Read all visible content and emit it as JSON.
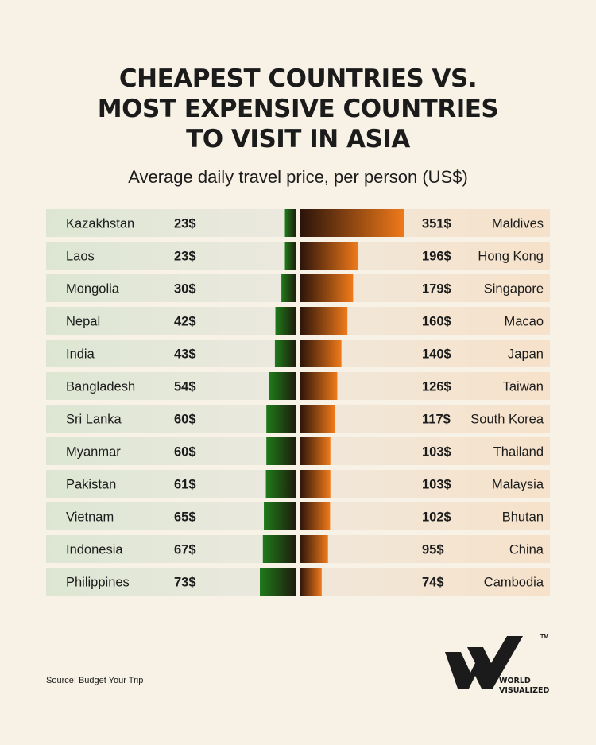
{
  "header": {
    "title_lines": [
      "CHEAPEST COUNTRIES VS.",
      "MOST EXPENSIVE COUNTRIES",
      "TO VISIT IN ASIA"
    ],
    "subtitle": "Average daily travel price, per person (US$)"
  },
  "chart_data": {
    "type": "bar",
    "title": "CHEAPEST COUNTRIES VS. MOST EXPENSIVE COUNTRIES TO VISIT IN ASIA",
    "subtitle": "Average daily travel price, per person (US$)",
    "unit_suffix": "$",
    "series": [
      {
        "name": "",
        "color": "#1f7a1a",
        "categories": [
          "Kazakhstan",
          "Laos",
          "Mongolia",
          "Nepal",
          "India",
          "Bangladesh",
          "Sri Lanka",
          "Myanmar",
          "Pakistan",
          "Vietnam",
          "Indonesia",
          "Philippines"
        ],
        "values": [
          23,
          23,
          30,
          42,
          43,
          54,
          60,
          60,
          61,
          65,
          67,
          73
        ]
      },
      {
        "name": "",
        "color": "#f07a1a",
        "categories": [
          "Maldives",
          "Hong Kong",
          "Singapore",
          "Macao",
          "Japan",
          "Taiwan",
          "South Korea",
          "Thailand",
          "Malaysia",
          "Bhutan",
          "China",
          "Cambodia"
        ],
        "values": [
          351,
          196,
          179,
          160,
          140,
          126,
          117,
          103,
          103,
          102,
          95,
          74
        ]
      }
    ]
  },
  "footer": {
    "source": "Source: Budget Your Trip",
    "brand_line1": "WORLD",
    "brand_line2": "VISUALIZED",
    "trademark": "TM"
  },
  "colors": {
    "background": "#f8f2e6",
    "cheap_bar": "#1f7a1a",
    "expensive_bar": "#f07a1a",
    "bar_dark": "#2a130a"
  }
}
